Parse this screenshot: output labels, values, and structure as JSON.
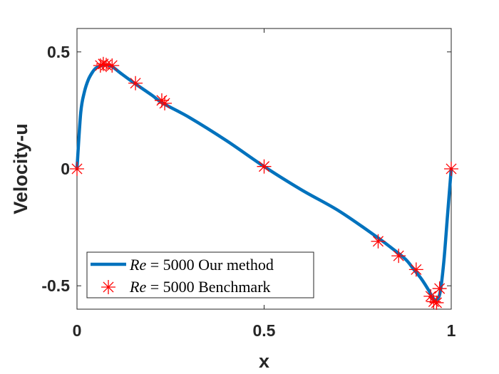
{
  "chart_data": {
    "type": "line",
    "title": "",
    "xlabel": "x",
    "ylabel": "Velocity-u",
    "xlim": [
      0,
      1
    ],
    "ylim": [
      -0.6,
      0.6
    ],
    "xticks": [
      0,
      0.5,
      1
    ],
    "yticks": [
      -0.5,
      0,
      0.5
    ],
    "xtick_labels": [
      "0",
      "0.5",
      "1"
    ],
    "ytick_labels": [
      "-0.5",
      "0",
      "0.5"
    ],
    "grid": false,
    "legend_position": "bottom-left",
    "colors": {
      "line": "#0072bd",
      "markers": "#ff0000",
      "axes": "#262626"
    },
    "series": [
      {
        "name": "Re = 5000 Our method",
        "legend_italic": "Re",
        "legend_rest": " = 5000 Our method",
        "style": "line",
        "x": [
          0,
          0.01,
          0.02,
          0.03,
          0.04,
          0.05,
          0.0625,
          0.075,
          0.09,
          0.1,
          0.12,
          0.15,
          0.2,
          0.23,
          0.3,
          0.4,
          0.5,
          0.6,
          0.7,
          0.8,
          0.85,
          0.88,
          0.9,
          0.92,
          0.94,
          0.95,
          0.96,
          0.97,
          0.98,
          0.99,
          1
        ],
        "y": [
          0,
          0.24,
          0.33,
          0.38,
          0.41,
          0.43,
          0.44,
          0.445,
          0.44,
          0.43,
          0.405,
          0.37,
          0.315,
          0.28,
          0.22,
          0.12,
          0.01,
          -0.09,
          -0.18,
          -0.29,
          -0.35,
          -0.39,
          -0.43,
          -0.47,
          -0.52,
          -0.55,
          -0.56,
          -0.53,
          -0.4,
          -0.2,
          0
        ]
      },
      {
        "name": "Re = 5000 Benchmark",
        "legend_italic": "Re",
        "legend_rest": " = 5000 Benchmark",
        "style": "markers",
        "marker": "asterisk",
        "x": [
          0,
          0.0625,
          0.0703,
          0.0781,
          0.0938,
          0.1563,
          0.2266,
          0.2344,
          0.5,
          0.8047,
          0.8594,
          0.9063,
          0.9453,
          0.9531,
          0.9609,
          0.9688,
          1
        ],
        "y": [
          0,
          0.4416,
          0.4483,
          0.4441,
          0.4417,
          0.3662,
          0.2926,
          0.2803,
          0.0101,
          -0.3098,
          -0.3719,
          -0.4306,
          -0.5447,
          -0.5679,
          -0.5724,
          -0.5118,
          0
        ]
      }
    ]
  }
}
